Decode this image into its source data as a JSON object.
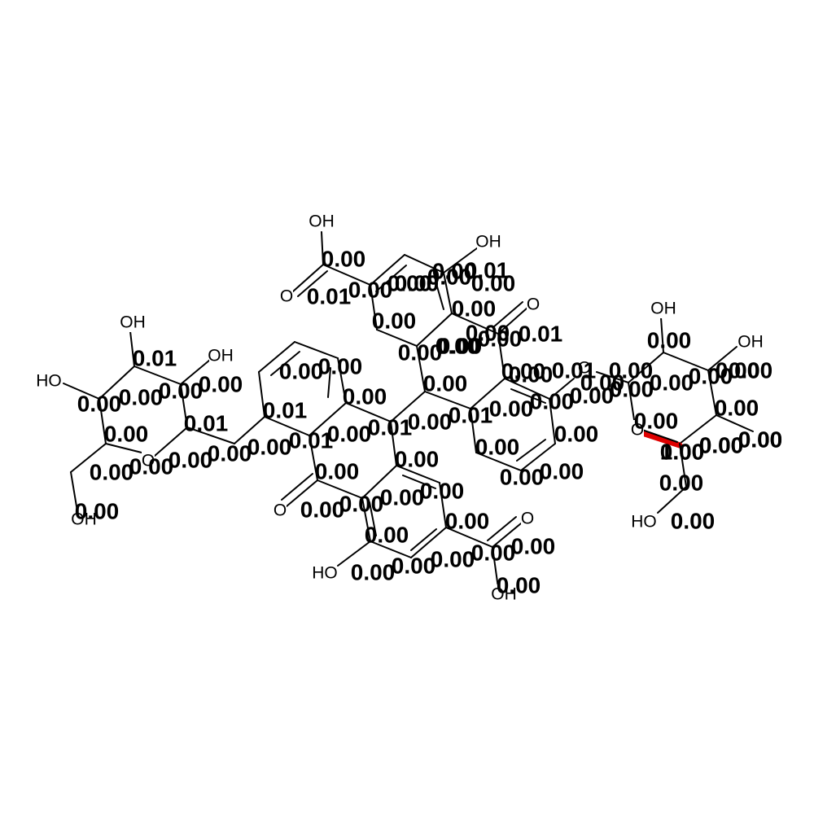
{
  "highlight_color": "#e00000",
  "atoms": [
    "OH",
    "O",
    "OH",
    "O",
    "OH",
    "OH",
    "HO",
    "OH",
    "O",
    "O",
    "O",
    "OH",
    "OH",
    "HO",
    "O",
    "O",
    "OH",
    "HO"
  ],
  "scores": [
    "0.00",
    "0.01",
    "0.00",
    "0.00",
    "0.00",
    "0.01",
    "0.00",
    "0.00",
    "0.00",
    "0.00",
    "0.00",
    "0.01",
    "0.00",
    "0.00",
    "0.00",
    "0.01",
    "0.00",
    "0.00",
    "0.00",
    "0.00",
    "0.00",
    "0.00",
    "0.00",
    "0.00",
    "0.00",
    "0.01",
    "0.00",
    "0.00",
    "0.00",
    "0.00",
    "0.00",
    "0.01",
    "0.01",
    "0.00",
    "0.00",
    "0.00",
    "0.00",
    "0.00",
    "0.00",
    "0.01",
    "0.00",
    "0.00",
    "0.00",
    "0.00",
    "0.01",
    "0.00",
    "0.00",
    "0.00",
    "0.00",
    "0.00",
    "0.00",
    "0.00",
    "0.00",
    "0.00",
    "0.00",
    "0.00",
    "0.00",
    "0.00",
    "0.00",
    "0.00",
    "0.00",
    "0.00",
    "0.00",
    "0.00",
    "0.00",
    "0.00",
    "0.00",
    "0.00",
    "0.00",
    "0.00",
    "0.00",
    "0.00",
    "0.00",
    "0.00",
    "0.01",
    "0.00",
    "0.00",
    "0.00",
    "1.00",
    "0.00",
    "0.00",
    "0.00"
  ]
}
